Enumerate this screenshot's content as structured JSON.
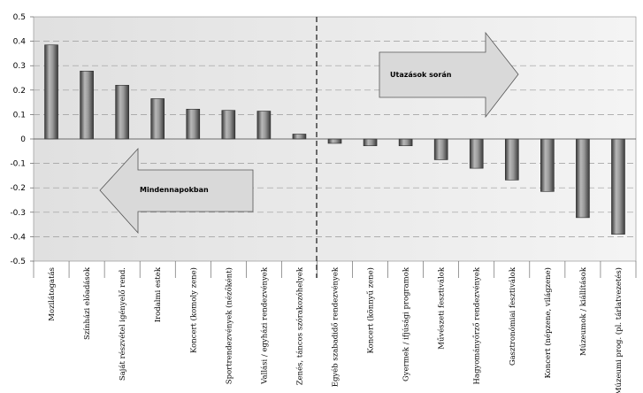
{
  "chart_data": {
    "type": "bar",
    "title": "",
    "xlabel": "",
    "ylabel": "",
    "ylim": [
      -0.5,
      0.5
    ],
    "yticks": [
      "0.5",
      "0.4",
      "0.3",
      "0.2",
      "0.1",
      "0",
      "-0.1",
      "-0.2",
      "-0.3",
      "-0.4",
      "-0.5"
    ],
    "grid": "horizontal-dashed",
    "categories": [
      "Mozilátogatás",
      "Színházi előadások",
      "Saját részvétel igényelő rend.",
      "Irodalmi estek",
      "Koncert (komoly zene)",
      "Sportrendezvények (nézőként)",
      "Vallási / egyházi rendezvények",
      "Zenés, táncos szórakozóhelyek",
      "Egyéb szabadidő rendezvények",
      "Koncert (könnyű zene)",
      "Gyermek / ifjúsági programok",
      "Művészeti fesztiválok",
      "Hagyományőrző rendezvények",
      "Gasztronómiai fesztiválok",
      "Koncert (népzene, világzene)",
      "Múzeumok / kiállítások",
      "Múzeumi prog. (pl. tárlatvezetés)"
    ],
    "values": [
      0.385,
      0.278,
      0.22,
      0.165,
      0.122,
      0.117,
      0.114,
      0.02,
      -0.018,
      -0.028,
      -0.028,
      -0.085,
      -0.12,
      -0.168,
      -0.215,
      -0.322,
      -0.39
    ],
    "annotations": {
      "right_arrow": "Utazások során",
      "left_arrow": "Mindennapokban"
    },
    "colors": {
      "bar_light": "#b8b8b8",
      "bar_dark": "#4a4a4a",
      "plot_bg": "#e4e4e4",
      "arrow_fill": "#d9d9d9"
    }
  }
}
